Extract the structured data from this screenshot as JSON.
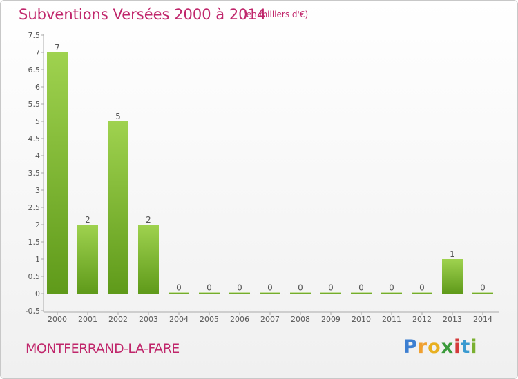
{
  "header": {
    "title": "Subventions Versées 2000 à 2014",
    "subtitle": "(en milliers d'€)"
  },
  "commune": "MONTFERRAND-LA-FARE",
  "logo": {
    "letters": [
      "P",
      "r",
      "o",
      "x",
      "i",
      "t",
      "i"
    ],
    "colors": [
      "#3d7fd1",
      "#f0a030",
      "#e8b020",
      "#3a9a3a",
      "#d43a3a",
      "#3a9ad0",
      "#7ab030"
    ]
  },
  "colors": {
    "title": "#c0266b",
    "bar_top": "#9fd24f",
    "bar_bottom": "#5f9a1a"
  },
  "chart_data": {
    "type": "bar",
    "categories": [
      "2000",
      "2001",
      "2002",
      "2003",
      "2004",
      "2005",
      "2006",
      "2007",
      "2008",
      "2009",
      "2010",
      "2011",
      "2012",
      "2013",
      "2014"
    ],
    "values": [
      7,
      2,
      5,
      2,
      0,
      0,
      0,
      0,
      0,
      0,
      0,
      0,
      0,
      1,
      0
    ],
    "yticks": [
      "-0,5",
      "0",
      "0.5",
      "1",
      "1.5",
      "2",
      "2.5",
      "3",
      "3.5",
      "4",
      "4.5",
      "5",
      "5.5",
      "6",
      "6.5",
      "7",
      "7.5"
    ],
    "ylim": [
      -0.5,
      7.5
    ],
    "grid": false
  }
}
